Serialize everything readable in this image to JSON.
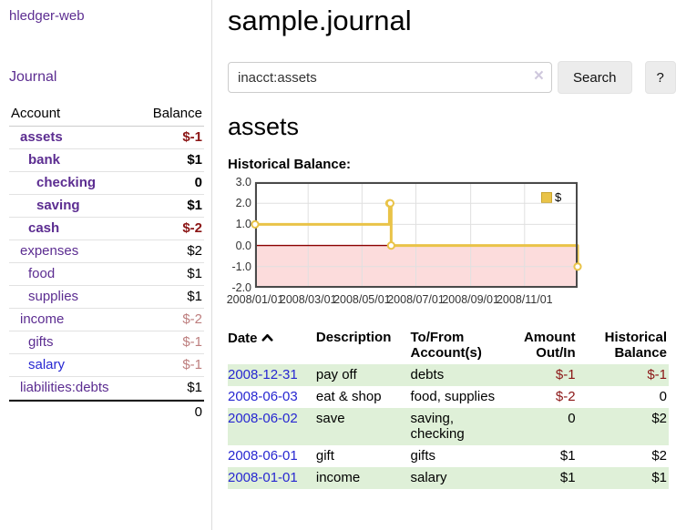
{
  "sidebar": {
    "app_title": "hledger-web",
    "journal_link": "Journal",
    "table": {
      "account_header": "Account",
      "balance_header": "Balance",
      "rows": [
        {
          "name": "assets",
          "balance": "$-1",
          "depth": 1,
          "bold": true,
          "neg": "strong"
        },
        {
          "name": "bank",
          "balance": "$1",
          "depth": 2,
          "bold": true,
          "neg": "none"
        },
        {
          "name": "checking",
          "balance": "0",
          "depth": 3,
          "bold": true,
          "neg": "none"
        },
        {
          "name": "saving",
          "balance": "$1",
          "depth": 3,
          "bold": true,
          "neg": "none"
        },
        {
          "name": "cash",
          "balance": "$-2",
          "depth": 2,
          "bold": true,
          "neg": "strong"
        },
        {
          "name": "expenses",
          "balance": "$2",
          "depth": 1,
          "bold": false,
          "neg": "none"
        },
        {
          "name": "food",
          "balance": "$1",
          "depth": 2,
          "bold": false,
          "neg": "none"
        },
        {
          "name": "supplies",
          "balance": "$1",
          "depth": 2,
          "bold": false,
          "neg": "none"
        },
        {
          "name": "income",
          "balance": "$-2",
          "depth": 1,
          "bold": false,
          "neg": "soft"
        },
        {
          "name": "gifts",
          "balance": "$-1",
          "depth": 2,
          "bold": false,
          "neg": "soft"
        },
        {
          "name": "salary",
          "balance": "$-1",
          "depth": 2,
          "bold": false,
          "neg": "soft",
          "unvisited": true
        },
        {
          "name": "liabilities:debts",
          "balance": "$1",
          "depth": 1,
          "bold": false,
          "neg": "none"
        }
      ],
      "total": "0"
    }
  },
  "main": {
    "title": "sample.journal",
    "search": {
      "value": "inacct:assets",
      "clear_icon": "×",
      "search_button": "Search",
      "help_button": "?"
    },
    "account_title": "assets",
    "section_label": "Historical Balance:"
  },
  "chart_data": {
    "type": "line",
    "step": true,
    "title": "Historical Balance:",
    "legend": {
      "label": "$",
      "position": "top-right"
    },
    "x_range": [
      "2008-01-01",
      "2008-12-31"
    ],
    "ylim": [
      -2,
      3
    ],
    "grid": true,
    "y_ticks": [
      {
        "label": "3.0",
        "value": 3
      },
      {
        "label": "2.0",
        "value": 2
      },
      {
        "label": "1.0",
        "value": 1
      },
      {
        "label": "0.0",
        "value": 0
      },
      {
        "label": "-1.0",
        "value": -1
      },
      {
        "label": "-2.0",
        "value": -2
      }
    ],
    "x_ticks": [
      {
        "label": "2008/01/01",
        "date": "2008-01-01"
      },
      {
        "label": "2008/03/01",
        "date": "2008-03-01"
      },
      {
        "label": "2008/05/01",
        "date": "2008-05-01"
      },
      {
        "label": "2008/07/01",
        "date": "2008-07-01"
      },
      {
        "label": "2008/09/01",
        "date": "2008-09-01"
      },
      {
        "label": "2008/11/01",
        "date": "2008-11-01"
      }
    ],
    "series": [
      {
        "name": "$",
        "color": "#e9c348",
        "marker": "hollow-circle",
        "points": [
          {
            "date": "2008-01-01",
            "value": 1
          },
          {
            "date": "2008-06-01",
            "value": 2
          },
          {
            "date": "2008-06-02",
            "value": 2
          },
          {
            "date": "2008-06-03",
            "value": 0
          },
          {
            "date": "2008-12-31",
            "value": -1
          }
        ]
      }
    ],
    "colors": {
      "negative_region": "#fcdcdc",
      "zero_line": "#8b0000",
      "grid": "#e0e0e0",
      "plot_border": "#4a4a4a"
    }
  },
  "register": {
    "headers": {
      "date": "Date",
      "description": "Description",
      "accounts": "To/From Account(s)",
      "amount": "Amount Out/In",
      "balance": "Historical Balance"
    },
    "sort": {
      "column": "date",
      "direction": "ascending"
    },
    "rows": [
      {
        "date": "2008-12-31",
        "description": "pay off",
        "accounts": "debts",
        "amount": "$-1",
        "amount_negative": true,
        "balance": "$-1",
        "balance_negative": true
      },
      {
        "date": "2008-06-03",
        "description": "eat & shop",
        "accounts": "food, supplies",
        "amount": "$-2",
        "amount_negative": true,
        "balance": "0",
        "balance_negative": false
      },
      {
        "date": "2008-06-02",
        "description": "save",
        "accounts": "saving, checking",
        "amount": "0",
        "amount_negative": false,
        "balance": "$2",
        "balance_negative": false
      },
      {
        "date": "2008-06-01",
        "description": "gift",
        "accounts": "gifts",
        "amount": "$1",
        "amount_negative": false,
        "balance": "$2",
        "balance_negative": false
      },
      {
        "date": "2008-01-01",
        "description": "income",
        "accounts": "salary",
        "amount": "$1",
        "amount_negative": false,
        "balance": "$1",
        "balance_negative": false
      }
    ]
  },
  "colors": {
    "link_purple": "#5c2d91",
    "link_blue": "#2727d1",
    "negative_strong": "#8b1515",
    "negative_soft": "#bd7e7e",
    "row_green": "#dff0d8",
    "accent_gold": "#e9c348"
  }
}
